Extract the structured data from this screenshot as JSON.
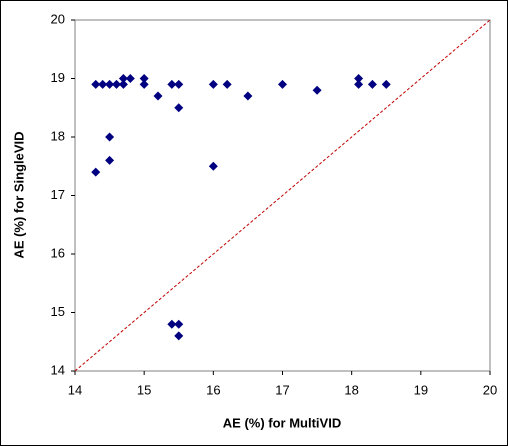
{
  "chart_data": {
    "type": "scatter",
    "x_label": "AE (%) for MultiVID",
    "y_label": "AE (%) for SingleVID",
    "xlim": [
      14,
      20
    ],
    "xticks": [
      14,
      15,
      16,
      17,
      18,
      19,
      20
    ],
    "ylim": [
      14,
      20
    ],
    "yticks": [
      14,
      15,
      16,
      17,
      18,
      19,
      20
    ],
    "grid": false,
    "color": "#000080",
    "x": [
      14.3,
      14.3,
      14.4,
      14.5,
      14.5,
      14.5,
      14.6,
      14.7,
      14.7,
      14.8,
      15.0,
      15.0,
      15.2,
      15.4,
      15.5,
      15.5,
      15.4,
      15.5,
      15.5,
      16.0,
      16.0,
      16.2,
      16.5,
      17.0,
      17.5,
      18.1,
      18.1,
      18.3,
      18.5
    ],
    "values": [
      17.4,
      18.9,
      18.9,
      18.9,
      18.0,
      17.6,
      18.9,
      18.9,
      19.0,
      19.0,
      19.0,
      18.9,
      18.7,
      18.9,
      18.9,
      18.5,
      14.8,
      14.8,
      14.6,
      18.9,
      17.5,
      18.9,
      18.7,
      18.9,
      18.8,
      18.9,
      19.0,
      18.9,
      18.9
    ],
    "reference_line": {
      "x": [
        14,
        20
      ],
      "y": [
        14,
        20
      ],
      "color": "#c00000",
      "dashed": true
    }
  }
}
